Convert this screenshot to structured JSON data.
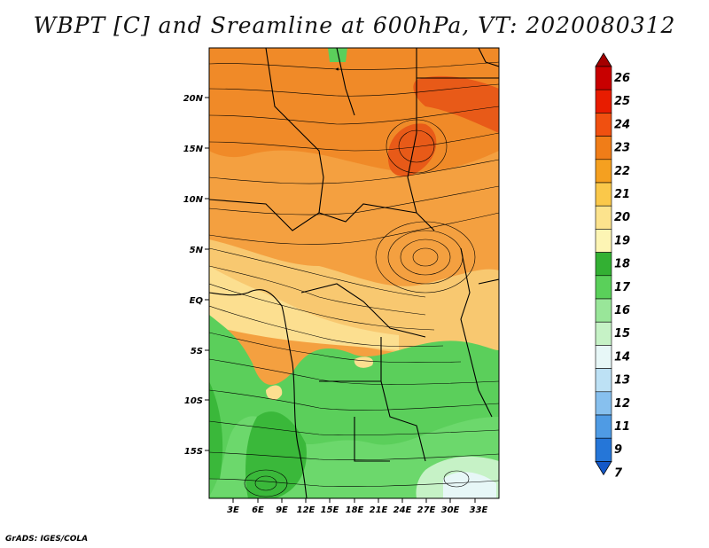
{
  "title": "WBPT [C] and Sreamline at 600hPa, VT: 2020080312",
  "credit": "GrADS: IGES/COLA",
  "map": {
    "lat_labels": [
      "20N",
      "15N",
      "10N",
      "5N",
      "EQ",
      "5S",
      "10S",
      "15S"
    ],
    "lon_labels": [
      "3E",
      "6E",
      "9E",
      "12E",
      "15E",
      "18E",
      "21E",
      "24E",
      "27E",
      "30E",
      "33E"
    ],
    "lat_range": [
      -20,
      25
    ],
    "lon_range": [
      0,
      36
    ]
  },
  "colorbar": {
    "labels": [
      "26",
      "25",
      "24",
      "23",
      "22",
      "21",
      "20",
      "19",
      "18",
      "17",
      "16",
      "15",
      "14",
      "13",
      "12",
      "11",
      "9",
      "7"
    ],
    "colors": [
      "#a40000",
      "#c80000",
      "#e81c00",
      "#f05010",
      "#f07d18",
      "#f5a020",
      "#fac84a",
      "#fce38d",
      "#fdf5b4",
      "#33b033",
      "#5ad05a",
      "#99e699",
      "#c6f2c6",
      "#e7f7f7",
      "#bde1f5",
      "#87c0ee",
      "#4f9be4",
      "#2576d8",
      "#1458c8"
    ]
  },
  "chart_data": {
    "type": "heatmap",
    "title": "WBPT [C] and Sreamline at 600hPa, VT: 2020080312",
    "variable": "Wet-bulb potential temperature at 600hPa with streamlines",
    "units": "C",
    "x_ticks": [
      "3E",
      "6E",
      "9E",
      "12E",
      "15E",
      "18E",
      "21E",
      "24E",
      "27E",
      "30E",
      "33E"
    ],
    "y_ticks": [
      "20N",
      "15N",
      "10N",
      "5N",
      "EQ",
      "5S",
      "10S",
      "15S"
    ],
    "contour_levels": [
      7,
      9,
      11,
      12,
      13,
      14,
      15,
      16,
      17,
      18,
      19,
      20,
      21,
      22,
      23,
      24,
      25,
      26
    ]
  }
}
